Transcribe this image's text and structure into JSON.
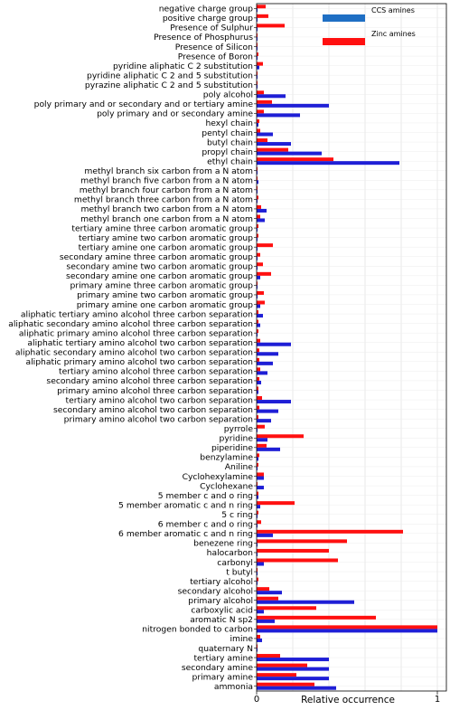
{
  "chart_data": {
    "type": "bar",
    "orientation": "horizontal",
    "xlabel": "Relative occurrence",
    "ylabel": "",
    "xlim": [
      0,
      1.05
    ],
    "xticks": [
      "0",
      "1"
    ],
    "grid": true,
    "legend_placement": "top-right",
    "categories": [
      "negative charge group",
      "positive charge group",
      "Presence of Sulphur",
      "Presence of Phosphurus",
      "Presence of Silicon",
      "Presence of Boron",
      "pyridine aliphatic C 2 substitution",
      "pyridine aliphatic C 2 and 5 substitution",
      "pyrazine aliphatic C 2 and 5 substitution",
      "poly alcohol",
      "poly primary and or secondary and or tertiary amine",
      "poly primary and or secondary amine",
      "hexyl chain",
      "pentyl chain",
      "butyl chain",
      "propyl chain",
      "ethyl chain",
      "methyl branch six carbon from a N atom",
      "methyl branch five carbon from a N atom",
      "methyl branch four carbon from a N atom",
      "methyl branch three carbon from a N atom",
      "methyl branch two carbon from a N atom",
      "methyl branch one carbon from a N atom",
      "tertiary amine three carbon aromatic group",
      "tertiary amine two carbon aromatic group",
      "tertiary amine one carbon aromatic group",
      "secondary amine three carbon aromatic group",
      "secondary amine two carbon aromatic group",
      "secondary amine one carbon aromatic group",
      "primary amine three carbon aromatic group",
      "primary amine two carbon aromatic group",
      "primary amine one carbon aromatic group",
      "aliphatic tertiary amino alcohol three carbon separation",
      "aliphatic secondary amino alcohol three carbon separation",
      "aliphatic primary amino alcohol three carbon separation",
      "aliphatic tertiary amino alcohol two carbon separation",
      "aliphatic secondary amino alcohol two carbon separation",
      "aliphatic primary amino alcohol two carbon separation",
      "tertiary amino alcohol three carbon separation",
      "secondary amino alcohol three carbon separation",
      "primary amino alcohol three carbon separation",
      "tertiary amino alcohol two carbon separation",
      "secondary amino alcohol two carbon separation",
      "primary amino alcohol two carbon separation",
      "pyrrole",
      "pyridine",
      "piperidine",
      "benzylamine",
      "Aniline",
      "Cyclohexylamine",
      "Cyclohexane",
      "5 member c and o ring",
      "5 member aromatic c and n ring",
      "5 c ring",
      "6 member c and o ring",
      "6 member aromatic c and n ring",
      "benezene ring",
      "halocarbon",
      "carbonyl",
      "t butyl",
      "tertiary alcohol",
      "secondary alcohol",
      "primary alcohol",
      "carboxylic acid",
      "aromatic N sp2",
      "nitrogen bonded to carbon",
      "imine",
      "quaternary N",
      "tertiary amine",
      "secondary amine",
      "primary amine",
      "ammonia"
    ],
    "series": [
      {
        "name": "CCS amines",
        "color": "#1f1fd6",
        "values": [
          0.005,
          0.005,
          0.005,
          0.005,
          0.005,
          0.005,
          0.015,
          0.005,
          0.005,
          0.16,
          0.4,
          0.24,
          0.01,
          0.09,
          0.19,
          0.36,
          0.79,
          0.005,
          0.01,
          0.005,
          0.005,
          0.055,
          0.045,
          0.005,
          0.005,
          0.005,
          0.005,
          0.005,
          0.02,
          0.005,
          0.005,
          0.02,
          0.035,
          0.02,
          0.005,
          0.19,
          0.12,
          0.09,
          0.06,
          0.025,
          0.01,
          0.19,
          0.12,
          0.08,
          0.005,
          0.06,
          0.13,
          0.01,
          0.005,
          0.04,
          0.04,
          0.01,
          0.02,
          0.005,
          0.005,
          0.09,
          0.005,
          0.005,
          0.04,
          0.005,
          0.005,
          0.14,
          0.54,
          0.04,
          0.1,
          1.0,
          0.03,
          0.005,
          0.4,
          0.4,
          0.4,
          0.44
        ]
      },
      {
        "name": "Zinc amines",
        "color": "#ff1010",
        "values": [
          0.05,
          0.065,
          0.155,
          0.005,
          0.005,
          0.01,
          0.035,
          0.005,
          0.005,
          0.04,
          0.085,
          0.04,
          0.015,
          0.02,
          0.06,
          0.175,
          0.425,
          0.005,
          0.005,
          0.005,
          0.01,
          0.025,
          0.02,
          0.01,
          0.01,
          0.09,
          0.02,
          0.035,
          0.08,
          0.005,
          0.04,
          0.045,
          0.01,
          0.01,
          0.01,
          0.02,
          0.015,
          0.015,
          0.02,
          0.015,
          0.01,
          0.03,
          0.015,
          0.01,
          0.045,
          0.26,
          0.055,
          0.015,
          0.01,
          0.04,
          0.005,
          0.01,
          0.21,
          0.01,
          0.025,
          0.81,
          0.5,
          0.4,
          0.45,
          0.005,
          0.01,
          0.07,
          0.12,
          0.33,
          0.66,
          1.0,
          0.02,
          0.005,
          0.13,
          0.28,
          0.22,
          0.32
        ]
      }
    ]
  }
}
